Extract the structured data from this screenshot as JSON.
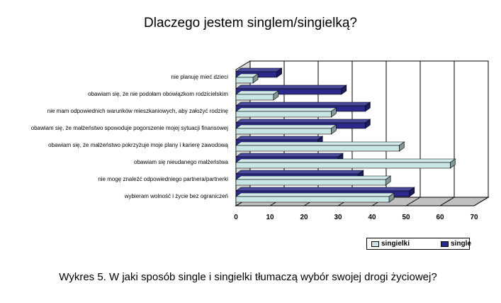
{
  "chart_data": {
    "type": "bar",
    "orientation": "horizontal",
    "title": "Dlaczego jestem singlem/singielką?",
    "categories": [
      "nie planuję mieć dzieci",
      "obawiam się, że nie podołam obowiązkom rodzicielskim",
      "nie mam odpowiednich warunków mieszkaniowych, aby założyć rodzinę",
      "obawiam się, że małżeństwo spowoduje pogorszenie mojej sytuacji finansowej",
      "obawiam się, że małżeństwo pokrzyżuje moje plany i karierę zawodową",
      "obawiam się nieudanego małżeństwa",
      "nie mogę znaleźć odpowiedniego partnera/partnerki",
      "wybieram wolność i życie bez ograniczeń"
    ],
    "series": [
      {
        "name": "singielki",
        "color": "#c8e6e6",
        "values": [
          5,
          11,
          28,
          28,
          48,
          63,
          44,
          45
        ]
      },
      {
        "name": "single",
        "color": "#2a2a8c",
        "values": [
          12,
          31,
          38,
          38,
          24,
          30,
          36,
          51
        ]
      }
    ],
    "xlim": [
      0,
      70
    ],
    "xticks": [
      0,
      10,
      20,
      30,
      40,
      50,
      60,
      70
    ],
    "grid": true,
    "legend_position": "bottom-right",
    "caption": "Wykres 5. W jaki sposób single i singielki tłumaczą wybór swojej drogi życiowej?"
  }
}
